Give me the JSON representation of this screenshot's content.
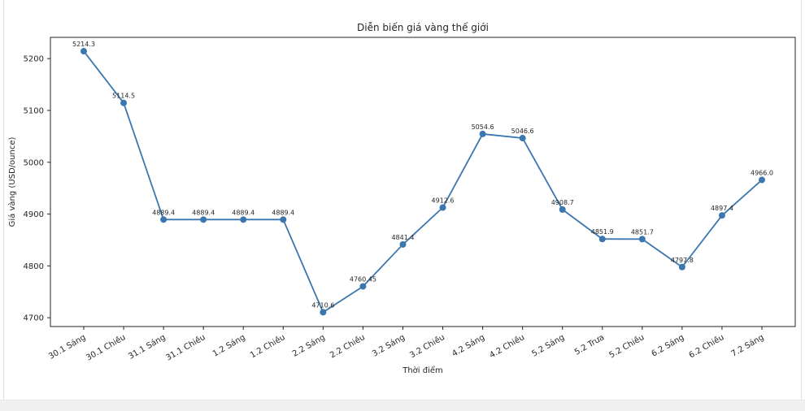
{
  "chart_data": {
    "type": "line",
    "title": "Diễn biến giá vàng thế giới",
    "xlabel": "Thời điểm",
    "ylabel": "Giá vàng (USD/ounce)",
    "categories": [
      "30.1 Sáng",
      "30.1 Chiều",
      "31.1 Sáng",
      "31.1 Chiều",
      "1.2 Sáng",
      "1.2 Chiều",
      "2.2 Sáng",
      "2.2 Chiều",
      "3.2 Sáng",
      "3.2 Chiều",
      "4.2 Sáng",
      "4.2 Chiều",
      "5.2 Sáng",
      "5.2 Trưa",
      "5.2 Chiều",
      "6.2 Sáng",
      "6.2 Chiều",
      "7.2 Sáng"
    ],
    "values": [
      5214.3,
      5114.5,
      4889.4,
      4889.4,
      4889.4,
      4889.4,
      4710.6,
      4760.45,
      4841.4,
      4912.6,
      5054.6,
      5046.6,
      4908.7,
      4851.9,
      4851.7,
      4797.8,
      4897.4,
      4966.0
    ],
    "point_labels": [
      "5214.3",
      "5114.5",
      "4889.4",
      "4889.4",
      "4889.4",
      "4889.4",
      "4710.6",
      "4760.45",
      "4841.4",
      "4912.6",
      "5054.6",
      "5046.6",
      "4908.7",
      "4851.9",
      "4851.7",
      "4797.8",
      "4897.4",
      "4966.0"
    ],
    "yticks": [
      4700,
      4800,
      4900,
      5000,
      5100,
      5200
    ],
    "ylim": [
      4683,
      5241
    ],
    "xtick_rotation_deg": 30,
    "grid": false,
    "legend": "none",
    "line_color": "#3b76af",
    "marker": "circle",
    "axis_color": "#262626"
  }
}
